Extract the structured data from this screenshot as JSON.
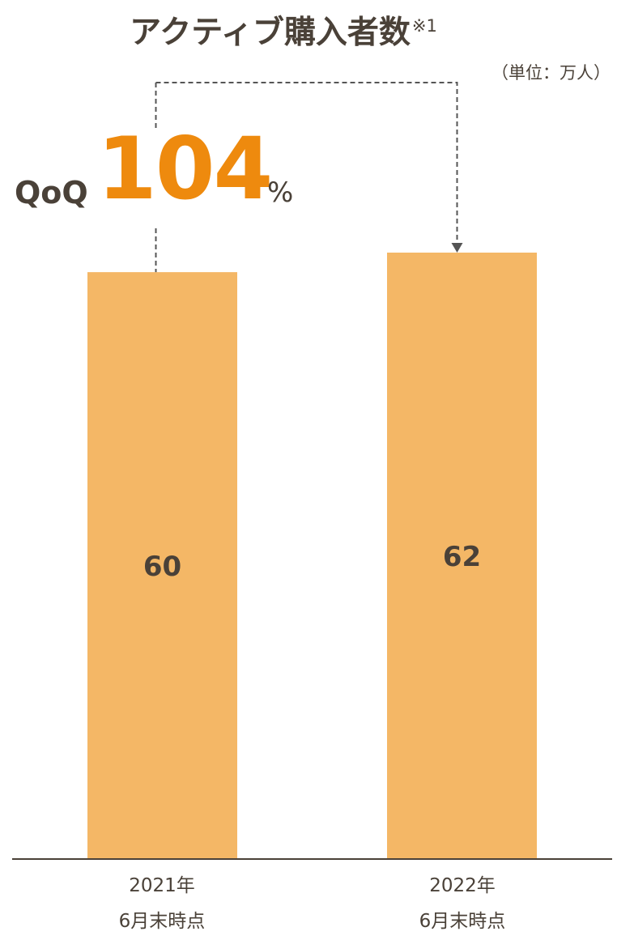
{
  "chart_data": {
    "type": "bar",
    "title": "アクティブ購入者数",
    "title_note": "※1",
    "unit": "（単位：万人）",
    "categories": [
      {
        "line1": "2021年",
        "line2": "6月末時点"
      },
      {
        "line1": "2022年",
        "line2": "6月末時点"
      }
    ],
    "values": [
      60,
      62
    ],
    "value_labels": [
      "60",
      "62"
    ],
    "ylim": [
      0,
      62
    ],
    "grid": false,
    "legend": false,
    "annotation": {
      "prefix": "QoQ",
      "value": "104",
      "suffix": "%",
      "from": "2021年",
      "to": "2022年"
    },
    "colors": {
      "bar": "#f4b766",
      "accent": "#ee8a0e",
      "text": "#4a4138",
      "axis": "#4a4138",
      "connector": "#555555"
    }
  }
}
